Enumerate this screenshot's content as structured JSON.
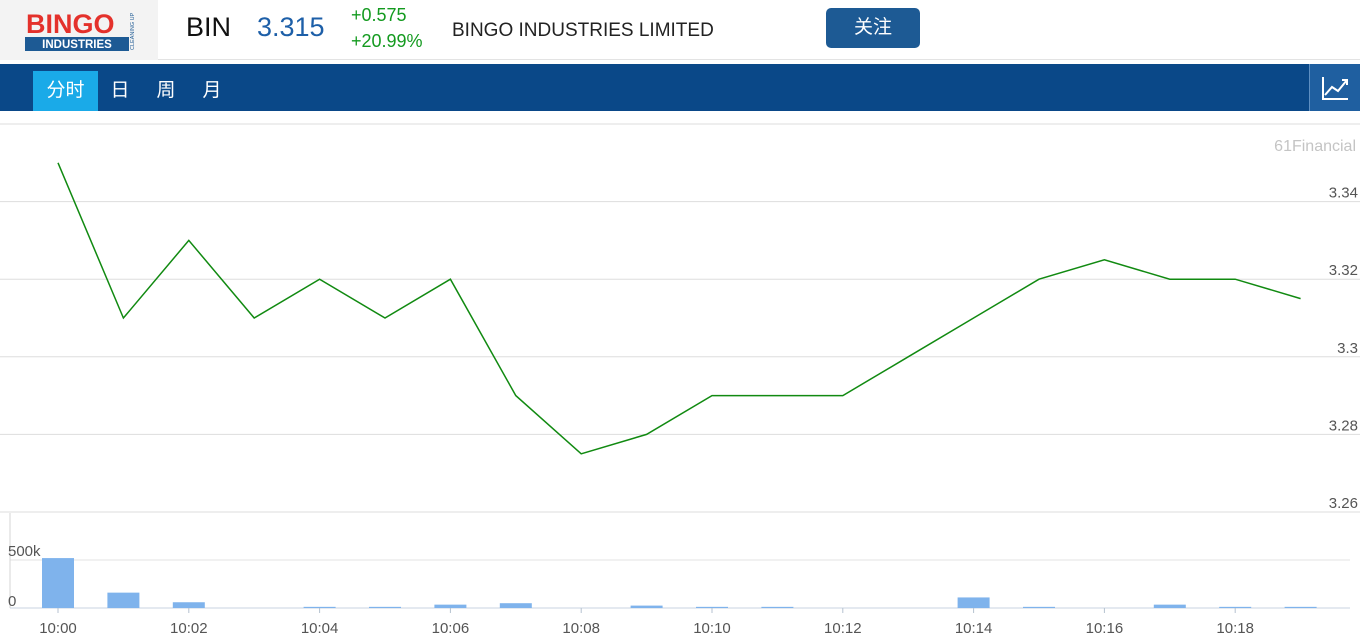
{
  "header": {
    "logo_text": "BINGO",
    "logo_subtext": "INDUSTRIES",
    "logo_tagline": "CLEANING UP",
    "ticker": "BIN",
    "price": "3.315",
    "change": "+0.575",
    "change_pct": "+20.99%",
    "company": "BINGO INDUSTRIES LIMITED",
    "follow_label": "关注"
  },
  "tabs": [
    {
      "label": "分时",
      "active": true
    },
    {
      "label": "日",
      "active": false
    },
    {
      "label": "周",
      "active": false
    },
    {
      "label": "月",
      "active": false
    }
  ],
  "chart_toggle_icon": "line-chart-icon",
  "colors": {
    "header_blue": "#1d5fa8",
    "navbar": "#0a4888",
    "active_tab": "#1aaae8",
    "up_green": "#139a1f",
    "line": "#118a11",
    "volume_bar": "#7fb3ec",
    "button": "#1d5a94"
  },
  "chart_data": {
    "type": "line",
    "watermark": "61Financial",
    "x": [
      "10:00",
      "10:01",
      "10:02",
      "10:03",
      "10:04",
      "10:05",
      "10:06",
      "10:07",
      "10:08",
      "10:09",
      "10:10",
      "10:11",
      "10:12",
      "10:13",
      "10:14",
      "10:15",
      "10:16",
      "10:17",
      "10:18",
      "10:19"
    ],
    "x_tick_labels": [
      "10:00",
      "10:02",
      "10:04",
      "10:06",
      "10:08",
      "10:10",
      "10:12",
      "10:14",
      "10:16",
      "10:18"
    ],
    "price": [
      3.35,
      3.31,
      3.33,
      3.31,
      3.32,
      3.31,
      3.32,
      3.29,
      3.275,
      3.28,
      3.29,
      3.29,
      3.29,
      3.3,
      3.31,
      3.32,
      3.325,
      3.32,
      3.32,
      3.315
    ],
    "y_ticks": [
      "3.34",
      "3.32",
      "3.3",
      "3.28",
      "3.26"
    ],
    "ylim": [
      3.26,
      3.36
    ],
    "volume": [
      520000,
      160000,
      60000,
      0,
      12000,
      12000,
      35000,
      50000,
      0,
      25000,
      12000,
      12000,
      0,
      0,
      110000,
      12000,
      0,
      35000,
      12000,
      12000
    ],
    "volume_ticks": [
      "500k",
      "0"
    ],
    "volume_ylim": [
      0,
      500000
    ],
    "grid": true
  }
}
